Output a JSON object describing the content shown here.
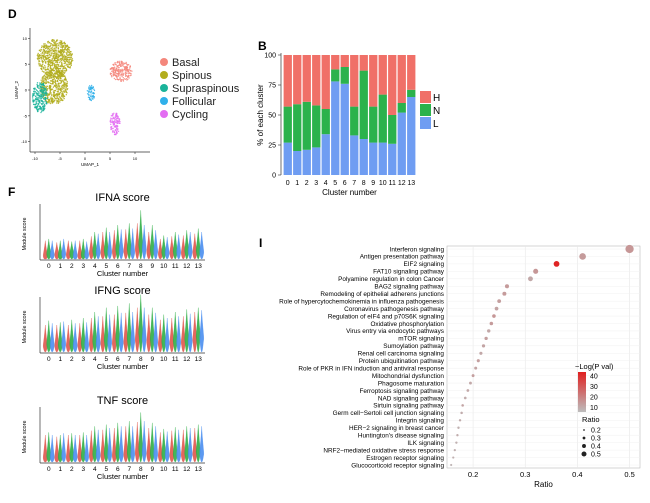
{
  "panels": {
    "D": "D",
    "B": "B",
    "F": "F",
    "I": "I"
  },
  "chart_data": [
    {
      "panel": "D",
      "type": "scatter",
      "xlabel": "UMAP_1",
      "ylabel": "UMAP_2",
      "xticks": [
        -10,
        -5,
        0,
        5,
        10
      ],
      "yticks": [
        -10,
        -5,
        0,
        5,
        10
      ],
      "xlim": [
        -11,
        13
      ],
      "ylim": [
        -12,
        12
      ],
      "legend_position": "right",
      "series": [
        {
          "name": "Basal",
          "color": "#f4877c",
          "clusters": [
            {
              "cx": 7.2,
              "cy": 3.6,
              "rx": 2.2,
              "ry": 2.0
            }
          ]
        },
        {
          "name": "Spinous",
          "color": "#b2ad1d",
          "clusters": [
            {
              "cx": -6.0,
              "cy": 6.2,
              "rx": 3.6,
              "ry": 3.6
            },
            {
              "cx": -6.2,
              "cy": 0.6,
              "rx": 2.8,
              "ry": 3.4
            }
          ]
        },
        {
          "name": "Supraspinous",
          "color": "#1ab39a",
          "clusters": [
            {
              "cx": -9.0,
              "cy": -1.4,
              "rx": 1.5,
              "ry": 3.0
            }
          ]
        },
        {
          "name": "Follicular",
          "color": "#30b0ea",
          "clusters": [
            {
              "cx": 1.2,
              "cy": -0.6,
              "rx": 0.8,
              "ry": 1.5
            }
          ]
        },
        {
          "name": "Cycling",
          "color": "#e36df2",
          "clusters": [
            {
              "cx": 6.0,
              "cy": -6.5,
              "rx": 1.0,
              "ry": 2.2
            }
          ]
        }
      ]
    },
    {
      "panel": "B",
      "type": "bar",
      "stacked": true,
      "xlabel": "Cluster number",
      "ylabel": "% of each cluster",
      "ylim": [
        0,
        100
      ],
      "yticks": [
        0,
        25,
        50,
        75,
        100
      ],
      "categories": [
        "0",
        "1",
        "2",
        "3",
        "4",
        "5",
        "6",
        "7",
        "8",
        "9",
        "10",
        "11",
        "12",
        "13"
      ],
      "legend_position": "right",
      "series": [
        {
          "name": "L",
          "color": "#6f9df2",
          "values": [
            27,
            20,
            21,
            23,
            34,
            78,
            76,
            33,
            30,
            27,
            27,
            26,
            52,
            65
          ]
        },
        {
          "name": "N",
          "color": "#2bb24c",
          "values": [
            30,
            39,
            40,
            35,
            21,
            10,
            14,
            24,
            57,
            30,
            40,
            24,
            8,
            6
          ]
        },
        {
          "name": "H",
          "color": "#f07068",
          "values": [
            43,
            41,
            39,
            42,
            45,
            12,
            10,
            43,
            13,
            43,
            33,
            50,
            40,
            29
          ]
        }
      ]
    },
    {
      "panel": "F",
      "type": "area",
      "subtype": "violin",
      "title": "IFNA score",
      "xlabel": "Cluster number",
      "ylabel": "Module score",
      "categories": [
        "0",
        "1",
        "2",
        "3",
        "4",
        "5",
        "6",
        "7",
        "8",
        "9",
        "10",
        "11",
        "12",
        "13"
      ],
      "series_colors": [
        "#e0574d",
        "#2fae46",
        "#4a8ef0"
      ],
      "medians": [
        [
          0.02,
          0.04,
          0.03
        ],
        [
          0.03,
          0.02,
          0.04
        ],
        [
          0.03,
          0.04,
          0.02
        ],
        [
          0.02,
          0.03,
          0.03
        ],
        [
          0.05,
          0.07,
          0.06
        ],
        [
          0.05,
          0.08,
          0.06
        ],
        [
          0.06,
          0.09,
          0.07
        ],
        [
          0.07,
          0.1,
          0.06
        ],
        [
          0.09,
          0.14,
          0.1
        ],
        [
          0.06,
          0.09,
          0.07
        ],
        [
          0.04,
          0.06,
          0.05
        ],
        [
          0.05,
          0.07,
          0.06
        ],
        [
          0.05,
          0.08,
          0.07
        ],
        [
          0.05,
          0.08,
          0.06
        ]
      ],
      "tops": [
        [
          0.2,
          0.22,
          0.2
        ],
        [
          0.18,
          0.2,
          0.22
        ],
        [
          0.2,
          0.19,
          0.2
        ],
        [
          0.2,
          0.22,
          0.19
        ],
        [
          0.25,
          0.3,
          0.28
        ],
        [
          0.3,
          0.35,
          0.3
        ],
        [
          0.32,
          0.38,
          0.33
        ],
        [
          0.33,
          0.4,
          0.34
        ],
        [
          0.4,
          0.55,
          0.38
        ],
        [
          0.3,
          0.38,
          0.32
        ],
        [
          0.22,
          0.26,
          0.24
        ],
        [
          0.25,
          0.3,
          0.27
        ],
        [
          0.26,
          0.32,
          0.3
        ],
        [
          0.28,
          0.34,
          0.3
        ]
      ]
    },
    {
      "panel": "F",
      "type": "area",
      "subtype": "violin",
      "title": "IFNG score",
      "xlabel": "Cluster number",
      "ylabel": "Module score",
      "categories": [
        "0",
        "1",
        "2",
        "3",
        "4",
        "5",
        "6",
        "7",
        "8",
        "9",
        "10",
        "11",
        "12",
        "13"
      ],
      "series_colors": [
        "#e0574d",
        "#2fae46",
        "#4a8ef0"
      ],
      "medians": [
        [
          0.05,
          0.07,
          0.06
        ],
        [
          0.05,
          0.06,
          0.07
        ],
        [
          0.05,
          0.07,
          0.05
        ],
        [
          0.06,
          0.08,
          0.06
        ],
        [
          0.07,
          0.1,
          0.08
        ],
        [
          0.08,
          0.12,
          0.09
        ],
        [
          0.08,
          0.13,
          0.09
        ],
        [
          0.09,
          0.14,
          0.1
        ],
        [
          0.12,
          0.2,
          0.13
        ],
        [
          0.09,
          0.13,
          0.1
        ],
        [
          0.07,
          0.1,
          0.08
        ],
        [
          0.08,
          0.11,
          0.09
        ],
        [
          0.09,
          0.13,
          0.1
        ],
        [
          0.12,
          0.16,
          0.14
        ]
      ],
      "tops": [
        [
          0.3,
          0.35,
          0.32
        ],
        [
          0.3,
          0.33,
          0.34
        ],
        [
          0.3,
          0.36,
          0.32
        ],
        [
          0.32,
          0.38,
          0.33
        ],
        [
          0.38,
          0.45,
          0.4
        ],
        [
          0.4,
          0.5,
          0.42
        ],
        [
          0.42,
          0.52,
          0.44
        ],
        [
          0.44,
          0.55,
          0.45
        ],
        [
          0.5,
          0.65,
          0.5
        ],
        [
          0.42,
          0.5,
          0.44
        ],
        [
          0.36,
          0.42,
          0.38
        ],
        [
          0.38,
          0.45,
          0.4
        ],
        [
          0.4,
          0.48,
          0.43
        ],
        [
          0.45,
          0.5,
          0.47
        ]
      ]
    },
    {
      "panel": "F",
      "type": "area",
      "subtype": "violin",
      "title": "TNF score",
      "xlabel": "Cluster number",
      "ylabel": "Module score",
      "categories": [
        "0",
        "1",
        "2",
        "3",
        "4",
        "5",
        "6",
        "7",
        "8",
        "9",
        "10",
        "11",
        "12",
        "13"
      ],
      "series_colors": [
        "#e0574d",
        "#2fae46",
        "#4a8ef0"
      ],
      "medians": [
        [
          0.03,
          0.05,
          0.04
        ],
        [
          0.03,
          0.04,
          0.05
        ],
        [
          0.03,
          0.05,
          0.04
        ],
        [
          0.04,
          0.05,
          0.04
        ],
        [
          0.05,
          0.07,
          0.06
        ],
        [
          0.05,
          0.08,
          0.06
        ],
        [
          0.05,
          0.08,
          0.06
        ],
        [
          0.06,
          0.09,
          0.07
        ],
        [
          0.08,
          0.13,
          0.09
        ],
        [
          0.06,
          0.08,
          0.07
        ],
        [
          0.05,
          0.07,
          0.06
        ],
        [
          0.05,
          0.07,
          0.06
        ],
        [
          0.06,
          0.08,
          0.07
        ],
        [
          0.07,
          0.1,
          0.08
        ]
      ],
      "tops": [
        [
          0.3,
          0.33,
          0.3
        ],
        [
          0.28,
          0.3,
          0.32
        ],
        [
          0.3,
          0.32,
          0.3
        ],
        [
          0.3,
          0.33,
          0.3
        ],
        [
          0.35,
          0.4,
          0.36
        ],
        [
          0.36,
          0.42,
          0.38
        ],
        [
          0.38,
          0.44,
          0.4
        ],
        [
          0.4,
          0.46,
          0.4
        ],
        [
          0.45,
          0.56,
          0.46
        ],
        [
          0.38,
          0.44,
          0.4
        ],
        [
          0.33,
          0.37,
          0.34
        ],
        [
          0.35,
          0.39,
          0.36
        ],
        [
          0.36,
          0.4,
          0.38
        ],
        [
          0.38,
          0.42,
          0.4
        ]
      ]
    },
    {
      "panel": "I",
      "type": "scatter",
      "subtype": "dot",
      "xlabel": "Ratio",
      "xlim": [
        0.15,
        0.52
      ],
      "xticks": [
        0.2,
        0.3,
        0.4,
        0.5
      ],
      "color_legend_title": "−Log(P val)",
      "color_legend_ticks": [
        40,
        30,
        20,
        10
      ],
      "color_scale": {
        "min": 5,
        "max": 42,
        "low": "#bdbdbd",
        "high": "#e02020"
      },
      "size_legend_title": "Ratio",
      "size_legend_ticks": [
        0.2,
        0.3,
        0.4,
        0.5
      ],
      "legend_position": "right",
      "pathways": [
        {
          "name": "Interferon signaling",
          "ratio": 0.5,
          "logp": 14
        },
        {
          "name": "Antigen presentation pathway",
          "ratio": 0.41,
          "logp": 13
        },
        {
          "name": "EIF2 signaling",
          "ratio": 0.36,
          "logp": 41
        },
        {
          "name": "FAT10 signaling pathway",
          "ratio": 0.32,
          "logp": 14
        },
        {
          "name": "Polyamine regulation in colon Cancer",
          "ratio": 0.31,
          "logp": 10
        },
        {
          "name": "BAG2 signaling pathway",
          "ratio": 0.265,
          "logp": 13
        },
        {
          "name": "Remodeling of epithelial adherens junctions",
          "ratio": 0.26,
          "logp": 13
        },
        {
          "name": "Role of hypercytochemokinemia in influenza pathogenesis",
          "ratio": 0.25,
          "logp": 12
        },
        {
          "name": "Coronavirus pathogenesis pathway",
          "ratio": 0.245,
          "logp": 11
        },
        {
          "name": "Regulation of eIF4 and p70S6K signaling",
          "ratio": 0.24,
          "logp": 14
        },
        {
          "name": "Oxidative phosphorylation",
          "ratio": 0.235,
          "logp": 13
        },
        {
          "name": "Virus entry via endocytic pathways",
          "ratio": 0.23,
          "logp": 10
        },
        {
          "name": "mTOR signaling",
          "ratio": 0.225,
          "logp": 12
        },
        {
          "name": "Sumoylation pathway",
          "ratio": 0.22,
          "logp": 11
        },
        {
          "name": "Renal cell carcinoma signaling",
          "ratio": 0.215,
          "logp": 10
        },
        {
          "name": "Protein ubiquitination pathway",
          "ratio": 0.21,
          "logp": 12
        },
        {
          "name": "Role of PKR in IFN induction and antiviral response",
          "ratio": 0.205,
          "logp": 11
        },
        {
          "name": "Mitochondrial dysfunction",
          "ratio": 0.2,
          "logp": 12
        },
        {
          "name": "Phagosome maturation",
          "ratio": 0.195,
          "logp": 10
        },
        {
          "name": "Ferroptosis signaling pathway",
          "ratio": 0.19,
          "logp": 10
        },
        {
          "name": "NAD signaling pathway",
          "ratio": 0.185,
          "logp": 9
        },
        {
          "name": "Sirtuin signaling pathway",
          "ratio": 0.18,
          "logp": 11
        },
        {
          "name": "Germ cell−Sertoli cell junction signaling",
          "ratio": 0.178,
          "logp": 9
        },
        {
          "name": "Integrin signaling",
          "ratio": 0.175,
          "logp": 9
        },
        {
          "name": "HER−2 signaling in breast cancer",
          "ratio": 0.172,
          "logp": 8
        },
        {
          "name": "Huntington's disease signaling",
          "ratio": 0.17,
          "logp": 9
        },
        {
          "name": "ILK signaling",
          "ratio": 0.168,
          "logp": 8
        },
        {
          "name": "NRF2−mediated oxidative stress response",
          "ratio": 0.165,
          "logp": 8
        },
        {
          "name": "Estrogen receptor signaling",
          "ratio": 0.162,
          "logp": 8
        },
        {
          "name": "Glucocorticoid receptor signaling",
          "ratio": 0.158,
          "logp": 7
        }
      ]
    }
  ]
}
